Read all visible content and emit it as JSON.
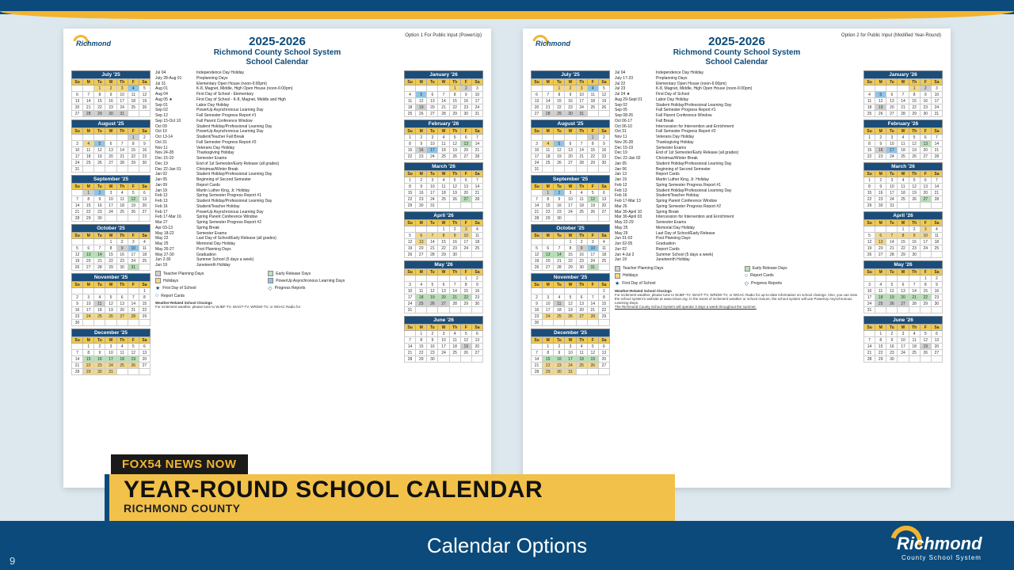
{
  "broadcast": {
    "tag": "FOX54 NEWS NOW",
    "headline": "YEAR-ROUND SCHOOL CALENDAR",
    "subline": "RICHMOND COUNTY",
    "bottom_title": "Calendar Options",
    "page_number": "9",
    "logo_name": "Richmond",
    "logo_sub": "County School System"
  },
  "colors": {
    "navy": "#0b4a7a",
    "gold": "#f2b430",
    "lt_gold": "#f2c14a",
    "bg": "#dde8ee"
  },
  "day_headers": [
    "Su",
    "M",
    "Tu",
    "W",
    "Th",
    "F",
    "Sa"
  ],
  "months_left": [
    {
      "name": "July '25",
      "start": 2,
      "days": 31,
      "hl": {
        "1": "gold",
        "2": "gold",
        "3": "gold",
        "4": "blue",
        "28": "gray",
        "29": "gray",
        "30": "gray",
        "31": "gray"
      }
    },
    {
      "name": "August '25",
      "start": 5,
      "days": 31,
      "hl": {
        "1": "gray",
        "4": "gold",
        "5": "blue"
      }
    },
    {
      "name": "September '25",
      "start": 1,
      "days": 30,
      "hl": {
        "1": "gray",
        "2": "blue",
        "12": "green"
      }
    },
    {
      "name": "October '25",
      "start": 3,
      "days": 31,
      "hl": {
        "9": "gray",
        "10": "blue",
        "13": "green",
        "14": "green",
        "31": "green"
      }
    },
    {
      "name": "November '25",
      "start": 6,
      "days": 30,
      "hl": {
        "11": "gray",
        "24": "gold",
        "25": "gold",
        "26": "gold",
        "27": "gold",
        "28": "gold"
      }
    },
    {
      "name": "December '25",
      "start": 1,
      "days": 31,
      "hl": {
        "15": "green",
        "16": "green",
        "17": "green",
        "18": "green",
        "19": "green",
        "22": "gold",
        "23": "gold",
        "24": "gold",
        "25": "gold",
        "26": "gold",
        "29": "gold",
        "30": "gold",
        "31": "gold"
      }
    }
  ],
  "months_right": [
    {
      "name": "January '26",
      "start": 4,
      "days": 31,
      "hl": {
        "1": "gold",
        "2": "gray",
        "5": "blue",
        "19": "gray"
      }
    },
    {
      "name": "February '26",
      "start": 0,
      "days": 28,
      "hl": {
        "13": "green",
        "16": "gray",
        "17": "blue"
      }
    },
    {
      "name": "March '26",
      "start": 0,
      "days": 31,
      "hl": {
        "27": "green"
      }
    },
    {
      "name": "April '26",
      "start": 3,
      "days": 30,
      "hl": {
        "3": "gold",
        "6": "gold",
        "7": "gold",
        "8": "gold",
        "9": "gold",
        "10": "gold",
        "13": "gold"
      }
    },
    {
      "name": "May '26",
      "start": 5,
      "days": 31,
      "hl": {
        "18": "green",
        "19": "green",
        "20": "green",
        "21": "green",
        "22": "green",
        "25": "gray",
        "26": "gray",
        "27": "gray"
      }
    },
    {
      "name": "June '26",
      "start": 1,
      "days": 30,
      "hl": {
        "19": "gray"
      }
    }
  ],
  "docs": [
    {
      "option_label": "Option 1 For Public Input (PowerUp)",
      "year": "2025-2026",
      "title": "Richmond County School System\nSchool Calendar",
      "events": [
        [
          "Jul 04",
          "Independence Day Holiday"
        ],
        [
          "July 28-Aug 01",
          "Preplanning Days"
        ],
        [
          "Jul 31",
          "Elementary Open House (noon-6:00pm)"
        ],
        [
          "Aug 01",
          "K-8, Magnet, Middle, High Open House (noon-6:00pm)"
        ],
        [
          "Aug 04",
          "First Day of School - Elementary"
        ],
        [
          "Aug 05  ★",
          "First Day of School - K-8, Magnet, Middle and High"
        ],
        [
          "Sep 01",
          "Labor Day Holiday"
        ],
        [
          "Sep 02",
          "PowerUp Asynchronous Learning Day"
        ],
        [
          "Sep 12",
          "Fall Semester Progress Report #1"
        ],
        [
          "Sep 15-Oct 10",
          "Fall Parent Conference Window"
        ],
        [
          "Oct 09",
          "Student Holiday/Professional Learning Day"
        ],
        [
          "Oct 10",
          "PowerUp Asynchronous Learning Day"
        ],
        [
          "Oct 13-14",
          "Student/Teacher Fall Break"
        ],
        [
          "Oct 31",
          "Fall Semester Progress Report #2"
        ],
        [
          "Nov 11",
          "Veterans Day Holiday"
        ],
        [
          "Nov 24-28",
          "Thanksgiving Holiday"
        ],
        [
          "Dec 15-19",
          "Semester Exams"
        ],
        [
          "Dec 19",
          "End of 1st Semester/Early Release (all grades)"
        ],
        [
          "Dec 22-Jan 01",
          "Christmas/Winter Break"
        ],
        [
          "Jan 02",
          "Student Holiday/Professional Learning Day"
        ],
        [
          "Jan 05",
          "Beginning of Second Semester"
        ],
        [
          "Jan 09",
          "Report Cards"
        ],
        [
          "Jan 19",
          "Martin Luther King, Jr. Holiday"
        ],
        [
          "Feb 12",
          "Spring Semester Progress Report #1"
        ],
        [
          "Feb 13",
          "Student Holiday/Professional Learning Day"
        ],
        [
          "Feb 16",
          "Student/Teacher Holiday"
        ],
        [
          "Feb 17",
          "PowerUp Asynchronous Learning Day"
        ],
        [
          "Feb 17-Mar 16",
          "Spring Parent Conference Window"
        ],
        [
          "Mar 27",
          "Spring Semester Progress Report #2"
        ],
        [
          "Apr 03-13",
          "Spring Break"
        ],
        [
          "May 18-22",
          "Semester Exams"
        ],
        [
          "May 22",
          "Last Day of School/Early Release (all grades)"
        ],
        [
          "May 25",
          "Memorial Day Holiday"
        ],
        [
          "May 26-27",
          "Post Planning Days"
        ],
        [
          "May 27-30",
          "Graduation"
        ],
        [
          "Jun 2-30",
          "Summer School (5 days a week)"
        ],
        [
          "Jun 19",
          "Juneteenth Holiday"
        ]
      ],
      "legend": [
        {
          "sw": "#d0d0d0",
          "label": "Teacher Planning Days"
        },
        {
          "sw": "#b8e0b8",
          "label": "Early Release Days"
        },
        {
          "sw": "#f2d88a",
          "label": "Holidays"
        },
        {
          "sw": "#8ec5e8",
          "label": "PowerUp Asynchronous Learning Days"
        },
        {
          "icon": "star",
          "label": "First Day of School"
        },
        {
          "icon": "diamond",
          "label": "Progress Reports"
        },
        {
          "icon": "circle",
          "label": "Report Cards"
        }
      ],
      "closings_title": "Weather-Related School Closings",
      "closings_text": "For inclement weather, please tune to WJBF-TV, WAGT-TV, WRDW-TV, or WGAC Radio for"
    },
    {
      "option_label": "Option 2 for Public Input (Modified Year-Round)",
      "year": "2025-2026",
      "title": "Richmond County School System\nSchool Calendar",
      "events": [
        [
          "Jul 04",
          "Independence Day Holiday"
        ],
        [
          "July 17-23",
          "Preplanning Days"
        ],
        [
          "Jul 22",
          "Elementary Open House (noon-6:00pm)"
        ],
        [
          "Jul 23",
          "K-8, Magnet, Middle, High Open House (noon-6:00pm)"
        ],
        [
          "Jul 24  ★",
          "First Day of School"
        ],
        [
          "Aug 29-Sept 01",
          "Labor Day Holiday"
        ],
        [
          "Sep 02",
          "Student Holiday/Professional Learning Day"
        ],
        [
          "Sep 05",
          "Fall Semester Progress Report #1"
        ],
        [
          "Sep 08-26",
          "Fall Parent Conference Window"
        ],
        [
          "Oct 06-17",
          "Fall Break"
        ],
        [
          "Oct 06-10",
          "Intercession for Intervention and Enrichment"
        ],
        [
          "Oct 31",
          "Fall Semester Progress Report #2"
        ],
        [
          "Nov 11",
          "Veterans Day Holiday"
        ],
        [
          "Nov 26-28",
          "Thanksgiving Holiday"
        ],
        [
          "Dec 15-19",
          "Semester Exams"
        ],
        [
          "Dec 19",
          "End of 1st Semester/Early Release (all grades)"
        ],
        [
          "Dec 22-Jan 02",
          "Christmas/Winter Break"
        ],
        [
          "Jan 05",
          "Student Holiday/Professional Learning Day"
        ],
        [
          "Jan 06",
          "Beginning of Second Semester"
        ],
        [
          "Jan 13",
          "Report Cards"
        ],
        [
          "Jan 19",
          "Martin Luther King, Jr. Holiday"
        ],
        [
          "Feb 12",
          "Spring Semester Progress Report #1"
        ],
        [
          "Feb 13",
          "Student Holiday/Professional Learning Day"
        ],
        [
          "Feb 16",
          "Student/Teacher Holiday"
        ],
        [
          "Feb 17-Mar 13",
          "Spring Parent Conference Window"
        ],
        [
          "Mar 26",
          "Spring Semester Progress Report #2"
        ],
        [
          "Mar 30-April 10",
          "Spring Break"
        ],
        [
          "Mar 30-April 03",
          "Intercession for Intervention and Enrichment"
        ],
        [
          "May 22-29",
          "Semester Exams"
        ],
        [
          "May 25",
          "Memorial Day Holiday"
        ],
        [
          "May 29",
          "Last Day of School/Early Release"
        ],
        [
          "Jun 01-02",
          "Post Planning Days"
        ],
        [
          "Jun 02-05",
          "Graduation"
        ],
        [
          "Jun 02",
          "Report Cards"
        ],
        [
          "Jun 4-Jul 2",
          "Summer School (5 days a week)"
        ],
        [
          "Jun 19",
          "Juneteenth Holiday"
        ]
      ],
      "legend": [
        {
          "sw": "#d0d0d0",
          "label": "Teacher Planning Days"
        },
        {
          "sw": "#b8e0b8",
          "label": "Early Release Days"
        },
        {
          "sw": "#f2d88a",
          "label": "Holidays"
        },
        {
          "icon": "circle",
          "label": "Report Cards"
        },
        {
          "icon": "star",
          "label": "First Day of School"
        },
        {
          "icon": "diamond",
          "label": "Progress Reports"
        }
      ],
      "closings_title": "Weather-Related School Closings",
      "closings_text": "For inclement weather, please tune to WJBF-TV, WAGT-TV, WRDW-TV, or WGAC Radio for up-to-date information on school closings. Also, you can view the school system's website at www.rcboe.org. In the event of inclement weather or school closure, the school system will use PowerUp Asynchronous Learning Days.",
      "closings_extra": "The Richmond County School System will operate 3 days a week throughout the summer."
    }
  ]
}
